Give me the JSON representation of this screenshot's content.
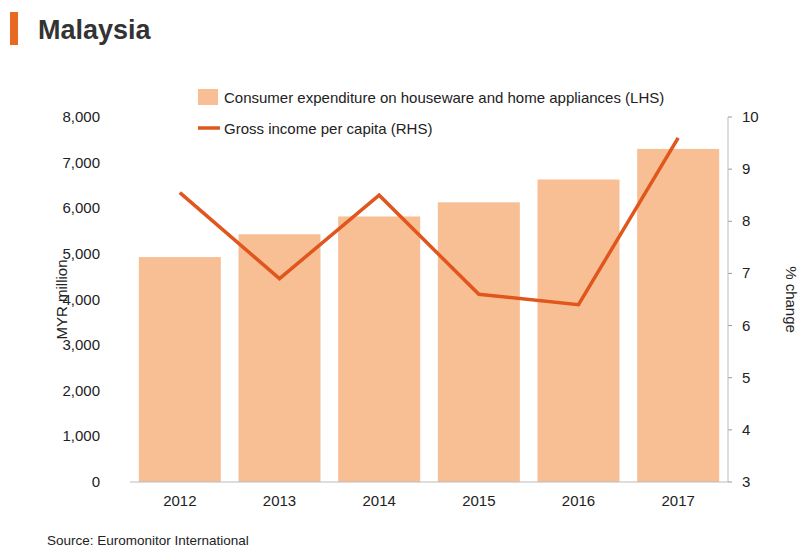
{
  "chart_data": {
    "type": "bar",
    "title": "Malaysia",
    "source": "Source: Euromonitor International",
    "y_label": "MYR million",
    "y2_label": "% change",
    "categories": [
      "2012",
      "2013",
      "2014",
      "2015",
      "2016",
      "2017"
    ],
    "series": [
      {
        "name": "Consumer expenditure on houseware and home appliances (LHS)",
        "type": "bar",
        "color": "#f8bf95",
        "values": [
          4930,
          5430,
          5820,
          6130,
          6630,
          7300
        ]
      },
      {
        "name": "Gross income per capita (RHS)",
        "type": "line",
        "axis": "y2",
        "color": "#e0561d",
        "values": [
          8.55,
          6.9,
          8.5,
          6.6,
          6.4,
          9.6
        ]
      }
    ],
    "ylim": [
      0,
      8000
    ],
    "yticks": [
      0,
      {
        "value": 1000,
        "label": "1,000"
      },
      {
        "value": 2000,
        "label": "2,000"
      },
      {
        "value": 3000,
        "label": "3,000"
      },
      {
        "value": 4000,
        "label": "4,000"
      },
      {
        "value": 5000,
        "label": "5,000"
      },
      {
        "value": 6000,
        "label": "6,000"
      },
      {
        "value": 7000,
        "label": "7,000"
      },
      {
        "value": 8000,
        "label": "8,000"
      }
    ],
    "y2lim": [
      3,
      10
    ],
    "y2ticks": [
      3,
      4,
      5,
      6,
      7,
      8,
      9,
      10
    ],
    "grid": false,
    "legend": "top"
  }
}
